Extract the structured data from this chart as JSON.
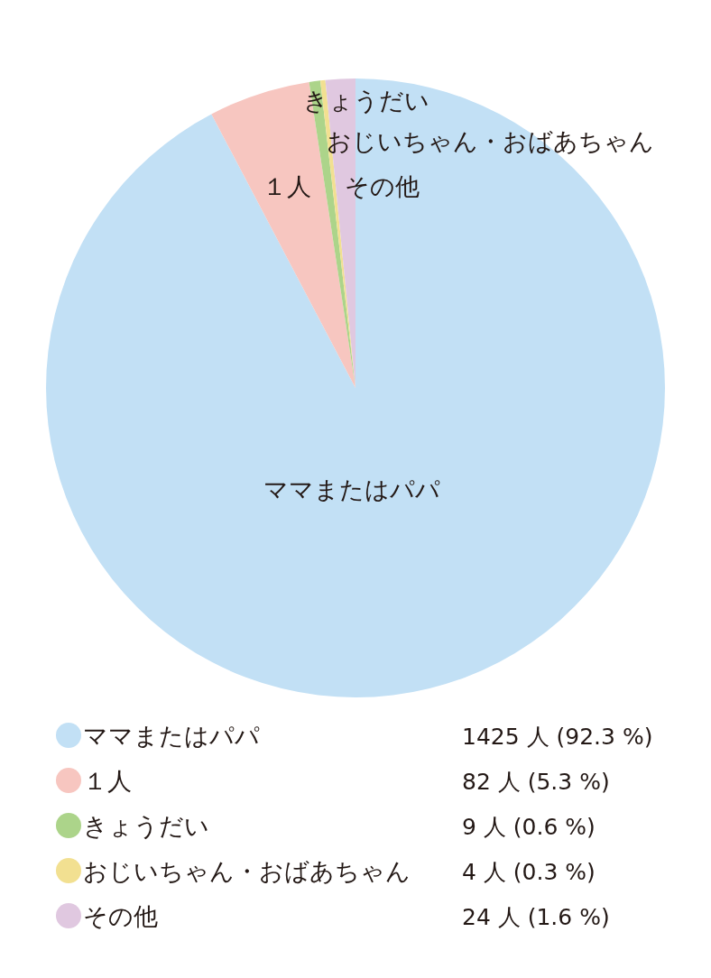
{
  "chart_data": {
    "type": "pie",
    "categories": [
      "ママまたはパパ",
      "１人",
      "きょうだい",
      "おじいちゃん・おばあちゃん",
      "その他"
    ],
    "values": [
      1425,
      82,
      9,
      4,
      24
    ],
    "colors": [
      "#c2e0f5",
      "#f7c6c0",
      "#acd48a",
      "#f2e091",
      "#e0c8e0"
    ],
    "value_labels": [
      "1425 人 (92.3 %)",
      "82 人 (5.3 %)",
      "9 人 (0.6 %)",
      "4 人 (0.3 %)",
      "24 人 (1.6 %)"
    ],
    "legend": "bottom"
  }
}
